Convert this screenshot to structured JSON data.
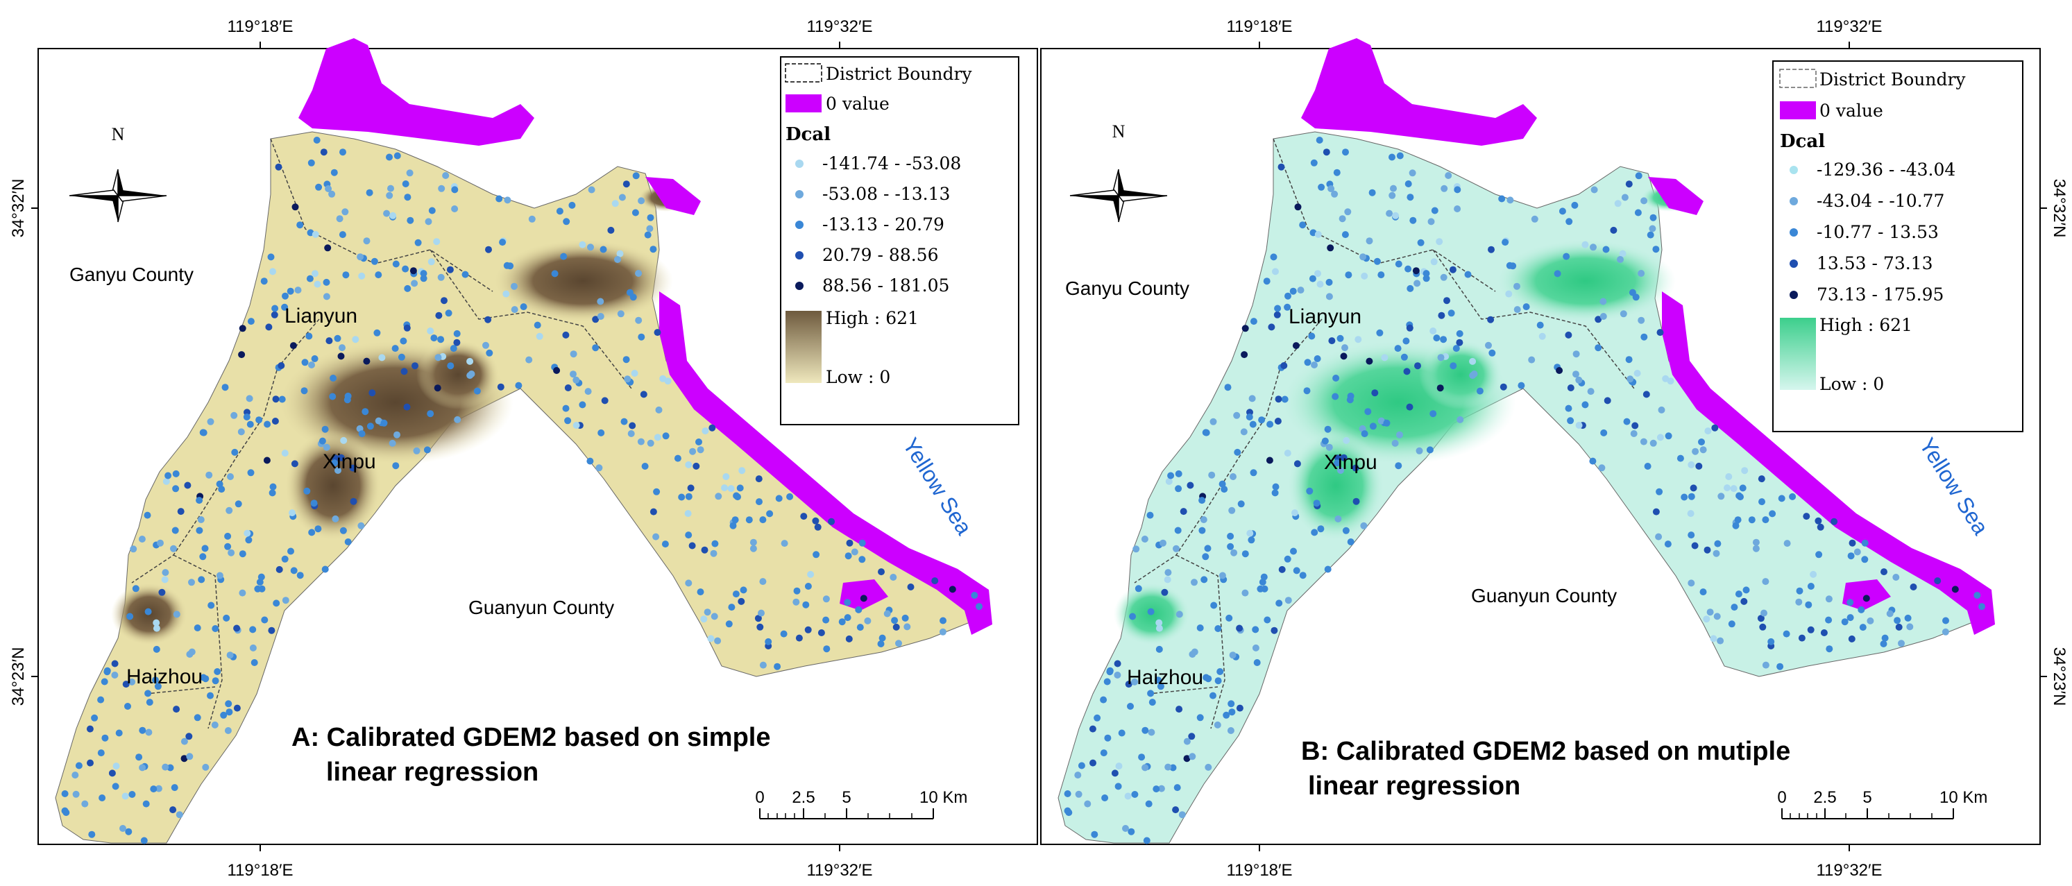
{
  "coords": {
    "top": [
      "119°18′E",
      "119°32′E"
    ],
    "bottom": [
      "119°18′E",
      "119°32′E"
    ],
    "lat_upper": "34°32′N",
    "lat_lower": "34°23′N"
  },
  "colors": {
    "boundary_zero": "#cc00ff",
    "simple_low": "#e8e0a8",
    "simple_high": "#6e5a3e",
    "multiple_low": "#c8f1e6",
    "multiple_high": "#3ccf8c",
    "dot_classes": [
      "#a9d8f0",
      "#6ea9dd",
      "#3a87d6",
      "#1f4fb0",
      "#0a1a5c"
    ]
  },
  "panels": [
    {
      "id": "A",
      "caption_line1": "A: Calibrated GDEM2 based on simple",
      "caption_line2": "linear regression",
      "place_names": {
        "ganyu": "Ganyu County",
        "lianyun": "Lianyun",
        "xinpu": "Xinpu",
        "haizhou": "Haizhou",
        "guanyun": "Guanyun County",
        "sea": "Yellow Sea"
      },
      "legend": {
        "boundary_label": "District Boundry",
        "zero_label": "0 value",
        "field_title": "Dcal",
        "classes": [
          "-141.74 - -53.08",
          "-53.08 - -13.13",
          "-13.13 - 20.79",
          "20.79 - 88.56",
          "88.56 - 181.05"
        ],
        "high_label": "High : 621",
        "low_label": "Low : 0"
      },
      "scalebar": {
        "ticks": [
          "0",
          "2.5",
          "5",
          "10 Km"
        ]
      },
      "north": "N"
    },
    {
      "id": "B",
      "caption_line1": "B: Calibrated GDEM2 based on mutiple",
      "caption_line2": "linear regression",
      "place_names": {
        "ganyu": "Ganyu County",
        "lianyun": "Lianyun",
        "xinpu": "Xinpu",
        "haizhou": "Haizhou",
        "guanyun": "Guanyun County",
        "sea": "Yellow Sea"
      },
      "legend": {
        "boundary_label": "District Boundry",
        "zero_label": "0 value",
        "field_title": "Dcal",
        "classes": [
          "-129.36 - -43.04",
          "-43.04 - -10.77",
          "-10.77 - 13.53",
          "13.53 - 73.13",
          "73.13 - 175.95"
        ],
        "high_label": "High : 621",
        "low_label": "Low : 0"
      },
      "scalebar": {
        "ticks": [
          "0",
          "2.5",
          "5",
          "10 Km"
        ]
      },
      "north": "N"
    }
  ]
}
